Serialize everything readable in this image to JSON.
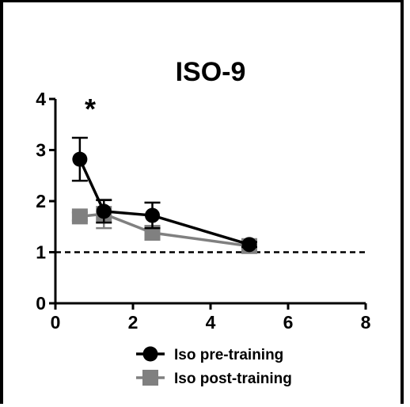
{
  "chart_data": {
    "type": "line",
    "title": "ISO-9",
    "annotation": "*",
    "xlabel": "",
    "ylabel": "",
    "xlim": [
      0,
      8
    ],
    "ylim": [
      0,
      4
    ],
    "x_ticks": [
      0,
      2,
      4,
      6,
      8
    ],
    "y_ticks": [
      0,
      1,
      2,
      3,
      4
    ],
    "grid": false,
    "legend_position": "bottom-center",
    "reference_line": {
      "y": 1,
      "style": "dashed",
      "color": "#000000"
    },
    "series": [
      {
        "name": "Iso pre-training",
        "color": "#000000",
        "marker": "circle",
        "x": [
          0.63,
          1.25,
          2.5,
          5.0
        ],
        "y": [
          2.82,
          1.8,
          1.72,
          1.15
        ],
        "error": [
          0.42,
          0.22,
          0.25,
          0.05
        ]
      },
      {
        "name": "Iso post-training",
        "color": "#808080",
        "marker": "square",
        "x": [
          0.63,
          1.25,
          2.5,
          5.0
        ],
        "y": [
          1.7,
          1.75,
          1.38,
          1.12
        ],
        "error": [
          0.08,
          0.28,
          0.12,
          0.04
        ]
      }
    ]
  }
}
